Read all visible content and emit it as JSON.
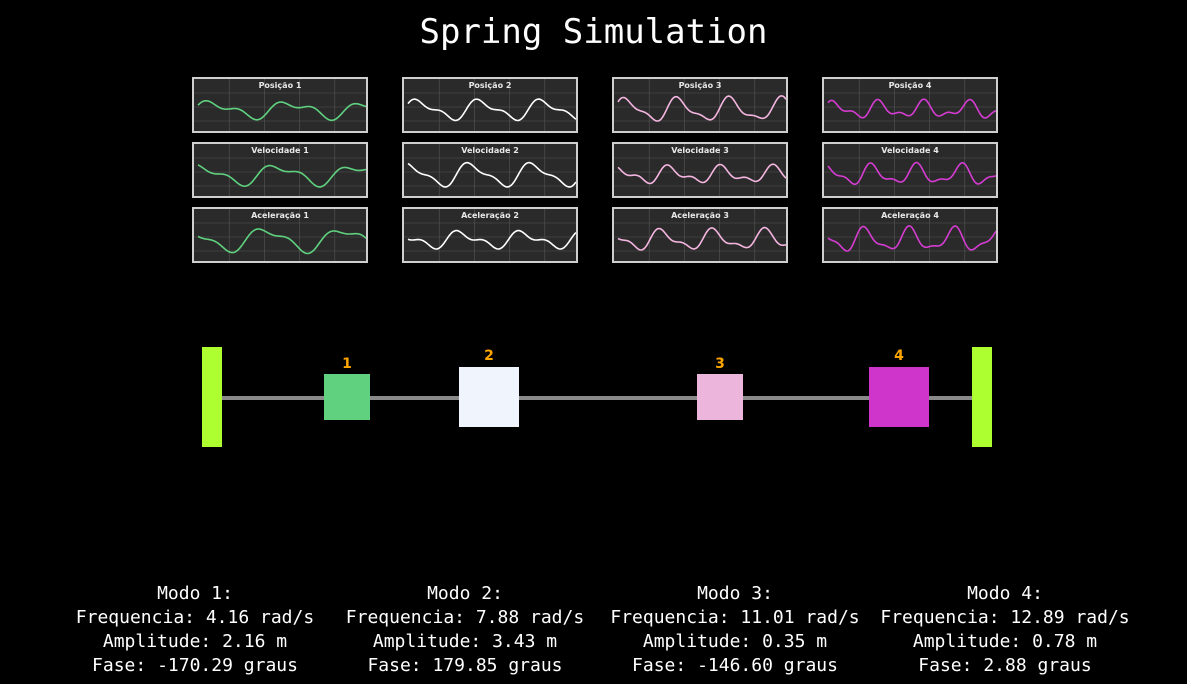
{
  "title": "Spring Simulation",
  "colors": {
    "mass1": "#5fd17f",
    "mass2": "#f0f4fc",
    "mass3": "#ecb6dc",
    "mass4": "#cf35cb",
    "wall": "#adff2f",
    "label": "#ffa500"
  },
  "plots": [
    {
      "title": "Posição 1",
      "color": "#5fd17f"
    },
    {
      "title": "Posição 2",
      "color": "#ffffff"
    },
    {
      "title": "Posição 3",
      "color": "#f4b5e0"
    },
    {
      "title": "Posição 4",
      "color": "#d63cd2"
    },
    {
      "title": "Velocidade 1",
      "color": "#5fd17f"
    },
    {
      "title": "Velocidade 2",
      "color": "#ffffff"
    },
    {
      "title": "Velocidade 3",
      "color": "#f4b5e0"
    },
    {
      "title": "Velocidade 4",
      "color": "#d63cd2"
    },
    {
      "title": "Aceleração 1",
      "color": "#5fd17f"
    },
    {
      "title": "Aceleração 2",
      "color": "#ffffff"
    },
    {
      "title": "Aceleração 3",
      "color": "#f4b5e0"
    },
    {
      "title": "Aceleração 4",
      "color": "#d63cd2"
    }
  ],
  "masses": [
    {
      "label": "1"
    },
    {
      "label": "2"
    },
    {
      "label": "3"
    },
    {
      "label": "4"
    }
  ],
  "modes": [
    {
      "title": "Modo 1:",
      "frequency": "Frequencia: 4.16 rad/s",
      "amplitude": "Amplitude: 2.16 m",
      "phase": "Fase: -170.29 graus"
    },
    {
      "title": "Modo 2:",
      "frequency": "Frequencia: 7.88 rad/s",
      "amplitude": "Amplitude: 3.43 m",
      "phase": "Fase: 179.85 graus"
    },
    {
      "title": "Modo 3:",
      "frequency": "Frequencia: 11.01 rad/s",
      "amplitude": "Amplitude: 0.35 m",
      "phase": "Fase: -146.60 graus"
    },
    {
      "title": "Modo 4:",
      "frequency": "Frequencia: 12.89 rad/s",
      "amplitude": "Amplitude: 0.78 m",
      "phase": "Fase: 2.88 graus"
    }
  ]
}
